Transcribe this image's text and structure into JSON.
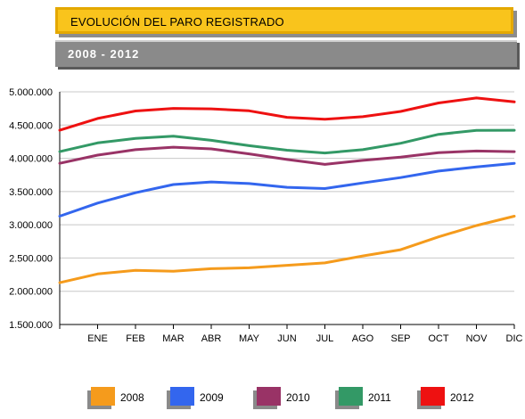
{
  "header": {
    "title": "EVOLUCIÓN DEL PARO REGISTRADO",
    "subtitle": "2008 - 2012"
  },
  "chart_data": {
    "type": "line",
    "title": "EVOLUCIÓN DEL PARO REGISTRADO",
    "subtitle": "2008 - 2012",
    "xlabel": "",
    "ylabel": "",
    "categories": [
      "",
      "ENE",
      "FEB",
      "MAR",
      "ABR",
      "MAY",
      "JUN",
      "JUL",
      "AGO",
      "SEP",
      "OCT",
      "NOV",
      "DIC"
    ],
    "ylim": [
      1500000,
      5000000
    ],
    "yticks": [
      1500000,
      2000000,
      2500000,
      3000000,
      3500000,
      4000000,
      4500000,
      5000000
    ],
    "ytick_labels": [
      "1.500.000",
      "2.000.000",
      "2.500.000",
      "3.000.000",
      "3.500.000",
      "4.000.000",
      "4.500.000",
      "5.000.000"
    ],
    "grid": "horizontal",
    "legend_position": "bottom",
    "series": [
      {
        "name": "2008",
        "color": "#f59b1c",
        "values": [
          2129000,
          2261000,
          2315000,
          2300000,
          2339000,
          2353000,
          2391000,
          2427000,
          2531000,
          2625000,
          2818000,
          2989000,
          3129000
        ]
      },
      {
        "name": "2009",
        "color": "#3366ee",
        "values": [
          3129000,
          3327000,
          3482000,
          3605000,
          3644000,
          3620000,
          3564000,
          3545000,
          3630000,
          3710000,
          3808000,
          3869000,
          3924000
        ]
      },
      {
        "name": "2010",
        "color": "#993366",
        "values": [
          3924000,
          4048000,
          4130000,
          4167000,
          4142000,
          4066000,
          3982000,
          3909000,
          3969000,
          4017000,
          4086000,
          4110000,
          4100000
        ]
      },
      {
        "name": "2011",
        "color": "#339966",
        "values": [
          4100000,
          4231000,
          4300000,
          4334000,
          4270000,
          4190000,
          4122000,
          4080000,
          4130000,
          4226000,
          4361000,
          4420000,
          4422000
        ]
      },
      {
        "name": "2012",
        "color": "#ee1111",
        "values": [
          4422000,
          4599000,
          4712000,
          4750000,
          4744000,
          4714000,
          4616000,
          4587000,
          4626000,
          4705000,
          4833000,
          4908000,
          4848000
        ]
      }
    ]
  }
}
